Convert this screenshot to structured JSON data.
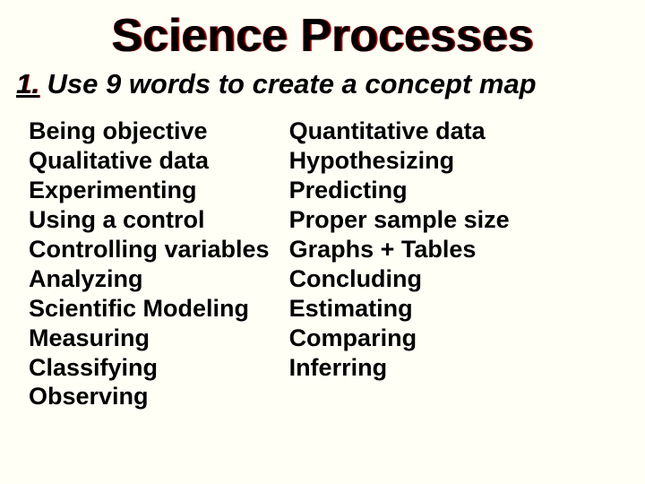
{
  "background_color": "#fffff5",
  "title": {
    "text": "Science Processes",
    "fontsize": 52,
    "color": "#000000",
    "shadow_color": "#cc0000",
    "font_weight": "bold"
  },
  "subtitle": {
    "number": "1.",
    "text": "Use 9 words to create a concept map",
    "fontsize": 31,
    "color": "#000000",
    "font_weight": "bold",
    "font_style": "italic"
  },
  "columns": {
    "left": [
      "Being objective",
      "Qualitative data",
      "Experimenting",
      "Using a control",
      "Controlling variables",
      "Analyzing",
      "Scientific Modeling",
      "Measuring",
      "Classifying",
      "Observing"
    ],
    "right": [
      "Quantitative data",
      "Hypothesizing",
      "Predicting",
      "Proper sample size",
      "Graphs + Tables",
      "Concluding",
      "Estimating",
      "Comparing",
      "Inferring"
    ],
    "item_fontsize": 27,
    "item_color": "#000000",
    "item_font_weight": "bold"
  }
}
